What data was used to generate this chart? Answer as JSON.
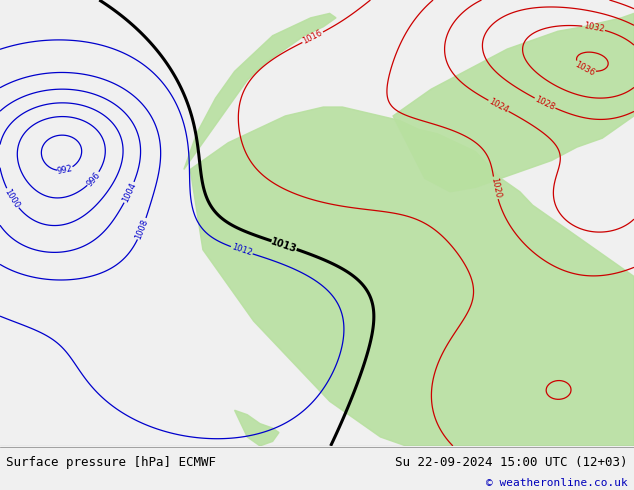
{
  "title_left": "Surface pressure [hPa] ECMWF",
  "title_right": "Su 22-09-2024 15:00 UTC (12+03)",
  "copyright": "© weatheronline.co.uk",
  "bg_color": "#d8d8d8",
  "land_color": "#b8e0a0",
  "ocean_color": "#d0d0d0",
  "footer_bg": "#f0f0f0",
  "text_color_black": "#000000",
  "text_color_blue": "#0000bb",
  "text_color_red": "#cc0000",
  "contour_blue": "#0000cc",
  "contour_red": "#cc0000",
  "contour_black": "#000000",
  "figsize": [
    6.34,
    4.9
  ],
  "dpi": 100
}
